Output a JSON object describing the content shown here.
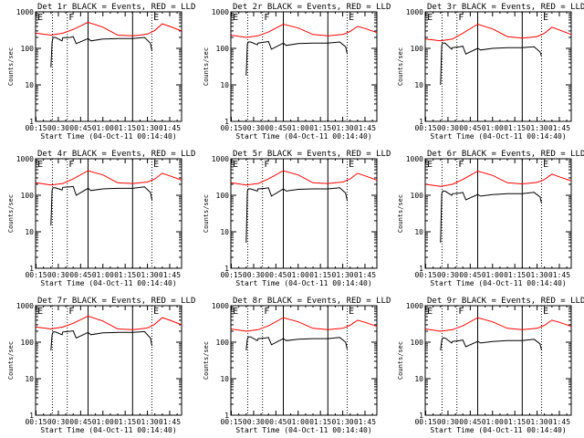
{
  "chart_data": {
    "type": "line",
    "layout": "3x3 grid",
    "xaxis": {
      "ticks": [
        "00:15",
        "00:30",
        "00:45",
        "01:00",
        "01:15",
        "01:30",
        "01:45"
      ],
      "label": "Start Time (04-Oct-11 00:14:40)",
      "range_minutes": [
        14.67,
        113
      ]
    },
    "yaxis": {
      "label": "Counts/sec",
      "scale": "log",
      "range": [
        1,
        1000
      ],
      "ticks": [
        "1",
        "10",
        "100",
        "1000"
      ]
    },
    "series_colors": {
      "events": "#000000",
      "lld": "#ff0000"
    },
    "vertical_markers": {
      "dotted": [
        26,
        36,
        93
      ],
      "solid": [
        50,
        80
      ],
      "letters": [
        {
          "text": "E",
          "x": 16
        },
        {
          "text": "F",
          "x": 37
        },
        {
          "text": "E",
          "x": 94
        }
      ]
    },
    "panels": [
      {
        "title": "Det 1r BLACK = Events, RED = LLD",
        "lld": {
          "x": [
            15,
            25,
            33,
            40,
            50,
            60,
            70,
            80,
            85,
            90,
            95,
            100,
            105,
            113
          ],
          "y": [
            260,
            230,
            260,
            330,
            520,
            380,
            230,
            220,
            230,
            245,
            310,
            470,
            400,
            300
          ]
        },
        "events": {
          "x": [
            25,
            25.8,
            26.5,
            28,
            32.5,
            33,
            38,
            40,
            42,
            50,
            52,
            60,
            70,
            80,
            88,
            92,
            93
          ],
          "y": [
            30,
            150,
            200,
            200,
            160,
            195,
            200,
            210,
            135,
            185,
            160,
            180,
            185,
            185,
            200,
            140,
            85
          ]
        }
      },
      {
        "title": "Det 2r BLACK = Events, RED = LLD",
        "lld": {
          "x": [
            15,
            25,
            33,
            40,
            50,
            60,
            70,
            80,
            85,
            90,
            95,
            100,
            105,
            113
          ],
          "y": [
            230,
            200,
            220,
            280,
            460,
            360,
            240,
            220,
            230,
            240,
            290,
            400,
            350,
            270
          ]
        },
        "events": {
          "x": [
            25,
            25.8,
            26.5,
            28,
            32.5,
            33,
            38,
            40,
            42,
            50,
            52,
            60,
            70,
            80,
            88,
            92,
            93
          ],
          "y": [
            18,
            130,
            150,
            150,
            125,
            140,
            150,
            155,
            95,
            140,
            120,
            135,
            140,
            140,
            150,
            110,
            70
          ]
        }
      },
      {
        "title": "Det 3r BLACK = Events, RED = LLD",
        "lld": {
          "x": [
            15,
            25,
            33,
            40,
            50,
            60,
            70,
            80,
            85,
            90,
            95,
            100,
            105,
            113
          ],
          "y": [
            180,
            160,
            180,
            260,
            460,
            340,
            210,
            190,
            200,
            210,
            260,
            380,
            320,
            240
          ]
        },
        "events": {
          "x": [
            25,
            25.8,
            26.5,
            28,
            32.5,
            33,
            38,
            40,
            42,
            50,
            52,
            60,
            70,
            80,
            88,
            92,
            93
          ],
          "y": [
            10,
            120,
            140,
            140,
            95,
            105,
            110,
            115,
            70,
            100,
            90,
            100,
            105,
            105,
            110,
            80,
            60
          ]
        }
      },
      {
        "title": "Det 4r BLACK = Events, RED = LLD",
        "lld": {
          "x": [
            15,
            25,
            33,
            40,
            50,
            60,
            70,
            80,
            85,
            90,
            95,
            100,
            105,
            113
          ],
          "y": [
            220,
            190,
            210,
            280,
            470,
            360,
            220,
            210,
            220,
            230,
            280,
            400,
            340,
            260
          ]
        },
        "events": {
          "x": [
            25,
            25.8,
            26.5,
            28,
            32.5,
            33,
            38,
            40,
            42,
            50,
            52,
            60,
            70,
            80,
            88,
            92,
            93
          ],
          "y": [
            15,
            140,
            160,
            160,
            140,
            165,
            170,
            175,
            100,
            155,
            135,
            150,
            155,
            155,
            170,
            120,
            75
          ]
        }
      },
      {
        "title": "Det 5r BLACK = Events, RED = LLD",
        "lld": {
          "x": [
            15,
            25,
            33,
            40,
            50,
            60,
            70,
            80,
            85,
            90,
            95,
            100,
            105,
            113
          ],
          "y": [
            220,
            190,
            210,
            280,
            470,
            360,
            220,
            210,
            220,
            230,
            280,
            400,
            340,
            260
          ]
        },
        "events": {
          "x": [
            25,
            25.8,
            26.5,
            28,
            32.5,
            33,
            38,
            40,
            42,
            50,
            52,
            60,
            70,
            80,
            88,
            92,
            93
          ],
          "y": [
            5,
            130,
            150,
            150,
            130,
            150,
            155,
            160,
            95,
            150,
            130,
            145,
            150,
            150,
            160,
            115,
            70
          ]
        }
      },
      {
        "title": "Det 6r BLACK = Events, RED = LLD",
        "lld": {
          "x": [
            15,
            25,
            33,
            40,
            50,
            60,
            70,
            80,
            85,
            90,
            95,
            100,
            105,
            113
          ],
          "y": [
            200,
            175,
            200,
            270,
            460,
            350,
            220,
            205,
            215,
            225,
            270,
            380,
            320,
            250
          ]
        },
        "events": {
          "x": [
            25,
            25.8,
            26.5,
            28,
            32.5,
            33,
            38,
            40,
            42,
            50,
            52,
            60,
            70,
            80,
            88,
            92,
            93
          ],
          "y": [
            5,
            110,
            130,
            130,
            100,
            110,
            115,
            120,
            75,
            105,
            95,
            105,
            110,
            110,
            120,
            90,
            60
          ]
        }
      },
      {
        "title": "Det 7r BLACK = Events, RED = LLD",
        "lld": {
          "x": [
            15,
            25,
            33,
            40,
            50,
            60,
            70,
            80,
            85,
            90,
            95,
            100,
            105,
            113
          ],
          "y": [
            260,
            230,
            260,
            330,
            520,
            380,
            230,
            220,
            230,
            245,
            310,
            470,
            400,
            300
          ]
        },
        "events": {
          "x": [
            25,
            25.8,
            26.5,
            28,
            32.5,
            33,
            38,
            40,
            42,
            50,
            52,
            60,
            70,
            80,
            88,
            92,
            93
          ],
          "y": [
            60,
            160,
            190,
            190,
            160,
            190,
            200,
            205,
            130,
            185,
            160,
            180,
            185,
            185,
            195,
            130,
            80
          ]
        }
      },
      {
        "title": "Det 8r BLACK = Events, RED = LLD",
        "lld": {
          "x": [
            15,
            25,
            33,
            40,
            50,
            60,
            70,
            80,
            85,
            90,
            95,
            100,
            105,
            113
          ],
          "y": [
            230,
            200,
            220,
            280,
            470,
            360,
            240,
            220,
            230,
            240,
            290,
            400,
            350,
            270
          ]
        },
        "events": {
          "x": [
            25,
            25.8,
            26.5,
            28,
            32.5,
            33,
            38,
            40,
            42,
            50,
            52,
            60,
            70,
            80,
            88,
            92,
            93
          ],
          "y": [
            60,
            120,
            140,
            140,
            110,
            125,
            130,
            135,
            85,
            125,
            110,
            120,
            125,
            125,
            135,
            100,
            65
          ]
        }
      },
      {
        "title": "Det 9r BLACK = Events, RED = LLD",
        "lld": {
          "x": [
            15,
            25,
            33,
            40,
            50,
            60,
            70,
            80,
            85,
            90,
            95,
            100,
            105,
            113
          ],
          "y": [
            230,
            200,
            220,
            280,
            470,
            360,
            240,
            220,
            230,
            240,
            290,
            400,
            350,
            270
          ]
        },
        "events": {
          "x": [
            25,
            25.8,
            26.5,
            28,
            32.5,
            33,
            38,
            40,
            42,
            50,
            52,
            60,
            70,
            80,
            88,
            92,
            93
          ],
          "y": [
            60,
            110,
            130,
            130,
            95,
            105,
            110,
            115,
            75,
            105,
            95,
            105,
            110,
            110,
            120,
            90,
            60
          ]
        }
      }
    ]
  }
}
